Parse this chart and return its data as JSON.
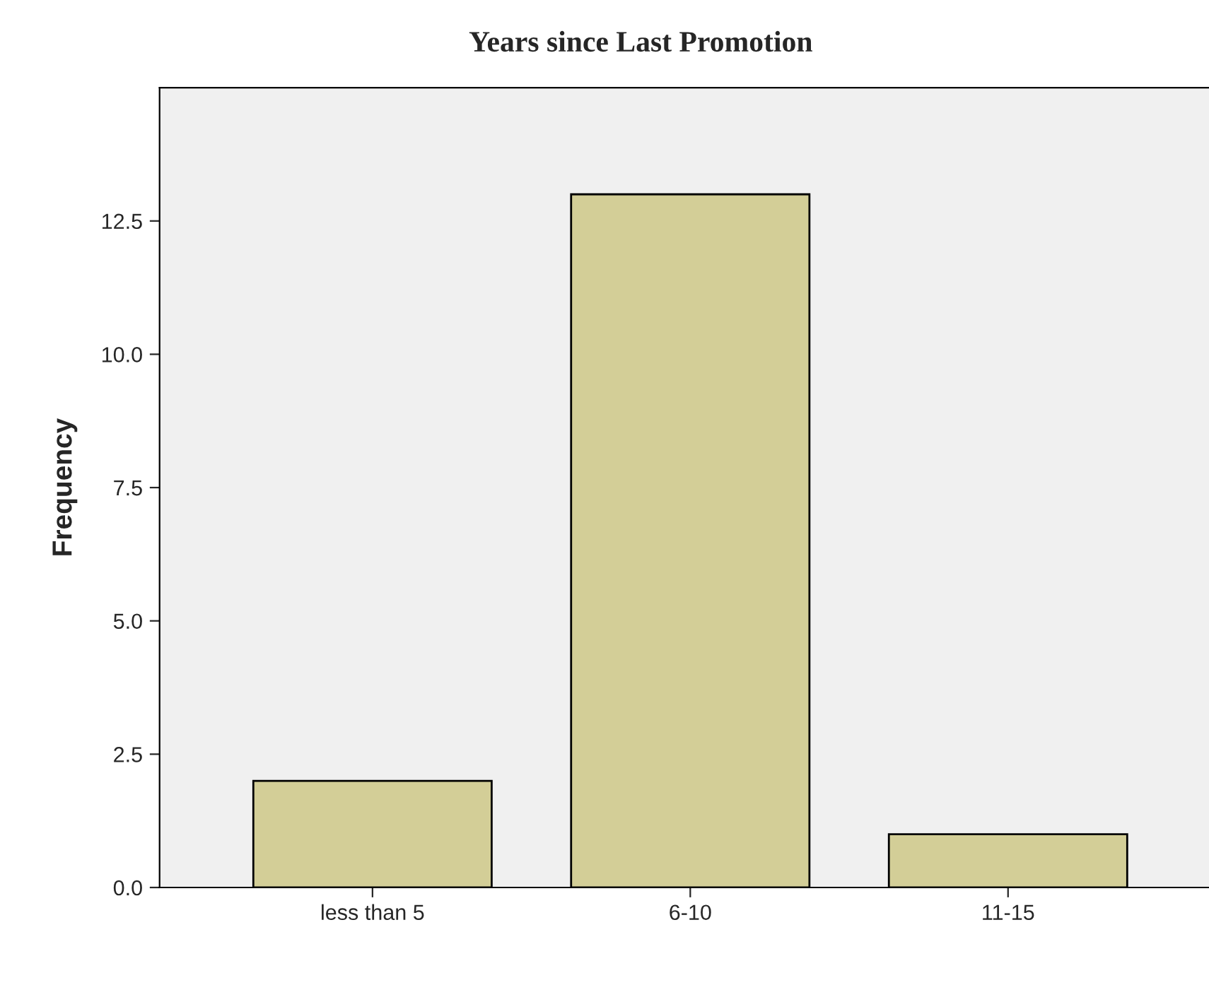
{
  "chart_data": {
    "type": "bar",
    "title": "Years since Last Promotion",
    "ylabel": "Frequency",
    "categories": [
      "less than 5",
      "6-10",
      "11-15"
    ],
    "values": [
      2,
      13,
      1
    ],
    "color": "#d3ce97",
    "ylim": [
      0,
      15
    ],
    "yticks": [
      {
        "value": 0,
        "label": "0.0"
      },
      {
        "value": 2.5,
        "label": "2.5"
      },
      {
        "value": 5,
        "label": "5.0"
      },
      {
        "value": 7.5,
        "label": "7.5"
      },
      {
        "value": 10,
        "label": "10.0"
      },
      {
        "value": 12.5,
        "label": "12.5"
      }
    ],
    "grid": false,
    "legend": false
  }
}
